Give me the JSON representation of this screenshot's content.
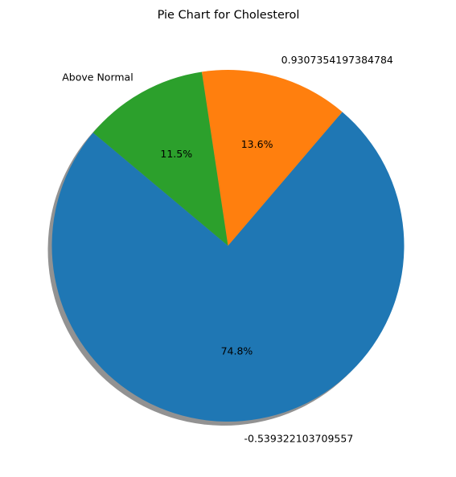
{
  "chart_data": {
    "type": "pie",
    "title": "Pie Chart for Cholesterol",
    "start_angle_deg": 140,
    "counterclockwise": true,
    "shadow": true,
    "slices": [
      {
        "label": "-0.539322103709557",
        "percent": 74.8,
        "pct_label": "74.8%",
        "color": "#1f77b4"
      },
      {
        "label": "0.9307354197384784",
        "percent": 13.6,
        "pct_label": "13.6%",
        "color": "#ff7f0e"
      },
      {
        "label": "Above Normal",
        "percent": 11.5,
        "pct_label": "11.5%",
        "color": "#2ca02c"
      }
    ]
  }
}
